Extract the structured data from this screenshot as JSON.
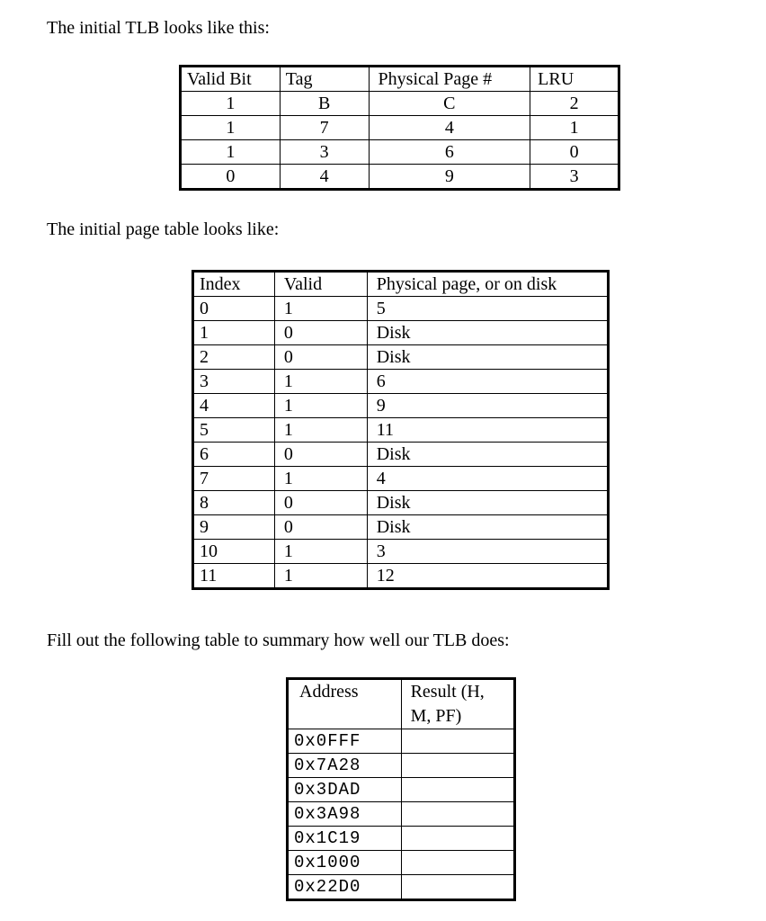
{
  "intro_tlb": "The initial TLB looks like this:",
  "tlb": {
    "headers": [
      "Valid Bit",
      "Tag",
      "Physical Page #",
      "LRU"
    ],
    "rows": [
      [
        "1",
        "B",
        "C",
        "2"
      ],
      [
        "1",
        "7",
        "4",
        "1"
      ],
      [
        "1",
        "3",
        "6",
        "0"
      ],
      [
        "0",
        "4",
        "9",
        "3"
      ]
    ]
  },
  "intro_page_table": "The initial page table looks like:",
  "page_table": {
    "headers": [
      "Index",
      "Valid",
      "Physical page, or on disk"
    ],
    "rows": [
      [
        "0",
        "1",
        "5"
      ],
      [
        "1",
        "0",
        "Disk"
      ],
      [
        "2",
        "0",
        "Disk"
      ],
      [
        "3",
        "1",
        "6"
      ],
      [
        "4",
        "1",
        "9"
      ],
      [
        "5",
        "1",
        "11"
      ],
      [
        "6",
        "0",
        "Disk"
      ],
      [
        "7",
        "1",
        "4"
      ],
      [
        "8",
        "0",
        "Disk"
      ],
      [
        "9",
        "0",
        "Disk"
      ],
      [
        "10",
        "1",
        "3"
      ],
      [
        "11",
        "1",
        "12"
      ]
    ]
  },
  "intro_summary": "Fill out the following table to summary how well our TLB does:",
  "summary": {
    "headers": [
      "Address",
      "Result  (H, M, PF)"
    ],
    "rows": [
      [
        "0x0FFF",
        ""
      ],
      [
        "0x7A28",
        ""
      ],
      [
        "0x3DAD",
        ""
      ],
      [
        "0x3A98",
        ""
      ],
      [
        "0x1C19",
        ""
      ],
      [
        "0x1000",
        ""
      ],
      [
        "0x22D0",
        ""
      ]
    ]
  }
}
